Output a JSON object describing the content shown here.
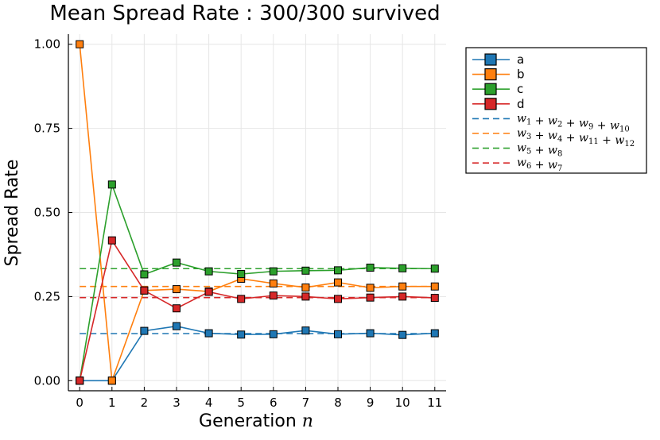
{
  "chart_data": {
    "type": "line",
    "title": "Mean Spread Rate : 300/300 survived",
    "xlabel": "Generation",
    "xlabel_math": "n",
    "ylabel": "Spread Rate",
    "x": [
      0,
      1,
      2,
      3,
      4,
      5,
      6,
      7,
      8,
      9,
      10,
      11
    ],
    "xlim": [
      -0.35,
      11.35
    ],
    "ylim": [
      -0.03,
      1.03
    ],
    "yticks": [
      0.0,
      0.25,
      0.5,
      0.75,
      1.0
    ],
    "ytick_labels": [
      "0.00",
      "0.25",
      "0.50",
      "0.75",
      "1.00"
    ],
    "xtick_labels": [
      "0",
      "1",
      "2",
      "3",
      "4",
      "5",
      "6",
      "7",
      "8",
      "9",
      "10",
      "11"
    ],
    "grid": true,
    "legend_position": "top-right outside",
    "series": [
      {
        "name": "a",
        "color": "#1f77b4",
        "values": [
          0.0,
          0.0,
          0.148,
          0.162,
          0.141,
          0.137,
          0.138,
          0.149,
          0.138,
          0.141,
          0.136,
          0.141
        ]
      },
      {
        "name": "b",
        "color": "#ff7f0e",
        "values": [
          1.0,
          0.0,
          0.268,
          0.272,
          0.265,
          0.303,
          0.289,
          0.277,
          0.292,
          0.276,
          0.28,
          0.28
        ]
      },
      {
        "name": "c",
        "color": "#2ca02c",
        "values": [
          0.0,
          0.583,
          0.316,
          0.351,
          0.325,
          0.317,
          0.325,
          0.327,
          0.328,
          0.336,
          0.334,
          0.333
        ]
      },
      {
        "name": "d",
        "color": "#d62728",
        "values": [
          0.0,
          0.417,
          0.268,
          0.215,
          0.264,
          0.243,
          0.253,
          0.25,
          0.243,
          0.247,
          0.25,
          0.246
        ]
      }
    ],
    "reference_lines": [
      {
        "name": "w_1 + w_2 + w_9 + w_10",
        "color": "#1f77b4",
        "value": 0.14,
        "label_terms": [
          [
            "w",
            "1"
          ],
          [
            "w",
            "2"
          ],
          [
            "w",
            "9"
          ],
          [
            "w",
            "10"
          ]
        ]
      },
      {
        "name": "w_3 + w_4 + w_11 + w_12",
        "color": "#ff7f0e",
        "value": 0.28,
        "label_terms": [
          [
            "w",
            "3"
          ],
          [
            "w",
            "4"
          ],
          [
            "w",
            "11"
          ],
          [
            "w",
            "12"
          ]
        ]
      },
      {
        "name": "w_5 + w_8",
        "color": "#2ca02c",
        "value": 0.333,
        "label_terms": [
          [
            "w",
            "5"
          ],
          [
            "w",
            "8"
          ]
        ]
      },
      {
        "name": "w_6 + w_7",
        "color": "#d62728",
        "value": 0.247,
        "label_terms": [
          [
            "w",
            "6"
          ],
          [
            "w",
            "7"
          ]
        ]
      }
    ]
  }
}
